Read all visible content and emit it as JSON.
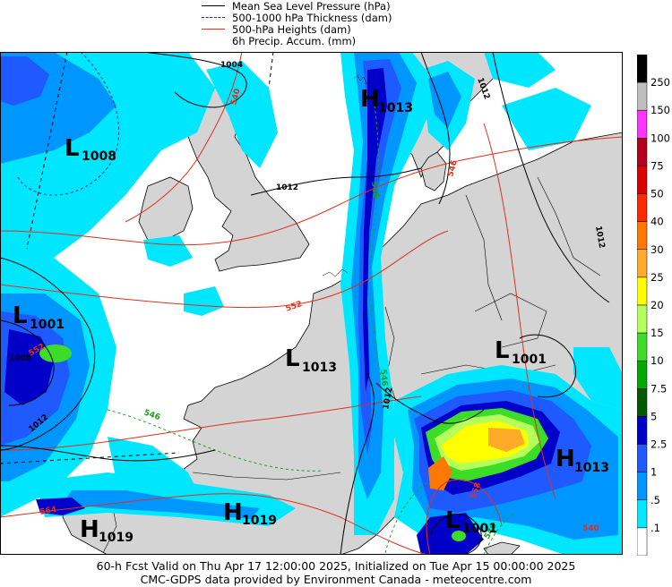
{
  "legend": {
    "mslp": "Mean Sea Level Pressure (hPa)",
    "thickness": "500-1000 hPa Thickness (dam)",
    "heights": "500-hPa Heights (dam)",
    "precip": "6h Precip. Accum. (mm)"
  },
  "colors": {
    "mslp": "#000000",
    "thickness_low": "#2020c0",
    "thickness_high": "#1fa01f",
    "heights": "#e0301a",
    "sea": "#ffffff",
    "land": "#d4d4d4"
  },
  "centers": [
    {
      "type": "L",
      "value": "1008"
    },
    {
      "type": "H",
      "value": "1013"
    },
    {
      "type": "L",
      "value": "1001"
    },
    {
      "type": "L",
      "value": "1013"
    },
    {
      "type": "L",
      "value": "1001"
    },
    {
      "type": "H",
      "value": "1013"
    },
    {
      "type": "H",
      "value": "1019"
    },
    {
      "type": "H",
      "value": "1019"
    },
    {
      "type": "L",
      "value": "1001"
    }
  ],
  "contour_labels": {
    "isobar_1004": "1004",
    "isobar_1012_a": "1012",
    "isobar_1012_b": "1012",
    "isobar_1012_c": "1012",
    "isobar_1012_d": "1012",
    "isobar_1012_e": "1012",
    "isobar_1008_a": "1008",
    "height_540": "540",
    "height_552": "552",
    "height_546": "546",
    "height_564": "564",
    "height_558": "558",
    "height_552_b": "552",
    "height_540_b": "540",
    "thick_546_a": "546",
    "thick_546_b": "546",
    "thick_546_c": "546",
    "thick_546_d": "546"
  },
  "colorbar": {
    "labels": [
      "250",
      "150",
      "100",
      "75",
      "50",
      "40",
      "30",
      "25",
      "20",
      "15",
      "10",
      "7.5",
      "5",
      "2.5",
      "1",
      ".5",
      ".1"
    ],
    "colors": [
      "#000000",
      "#bebebe",
      "#ff32ff",
      "#b4001e",
      "#dc0000",
      "#ff2a00",
      "#ff7800",
      "#ffaa28",
      "#ffff00",
      "#b4ff5a",
      "#3cdc28",
      "#00aa00",
      "#005a00",
      "#0000c8",
      "#1e5aff",
      "#0096ff",
      "#00e6ff",
      "#ffffff"
    ]
  },
  "footer": {
    "line1": "60-h Fcst Valid on Thu Apr 17 12:00:00 2025, Initialized on Tue Apr 15 00:00:00 2025",
    "line2": "CMC-GDPS data provided by Environment Canada - meteocentre.com"
  }
}
